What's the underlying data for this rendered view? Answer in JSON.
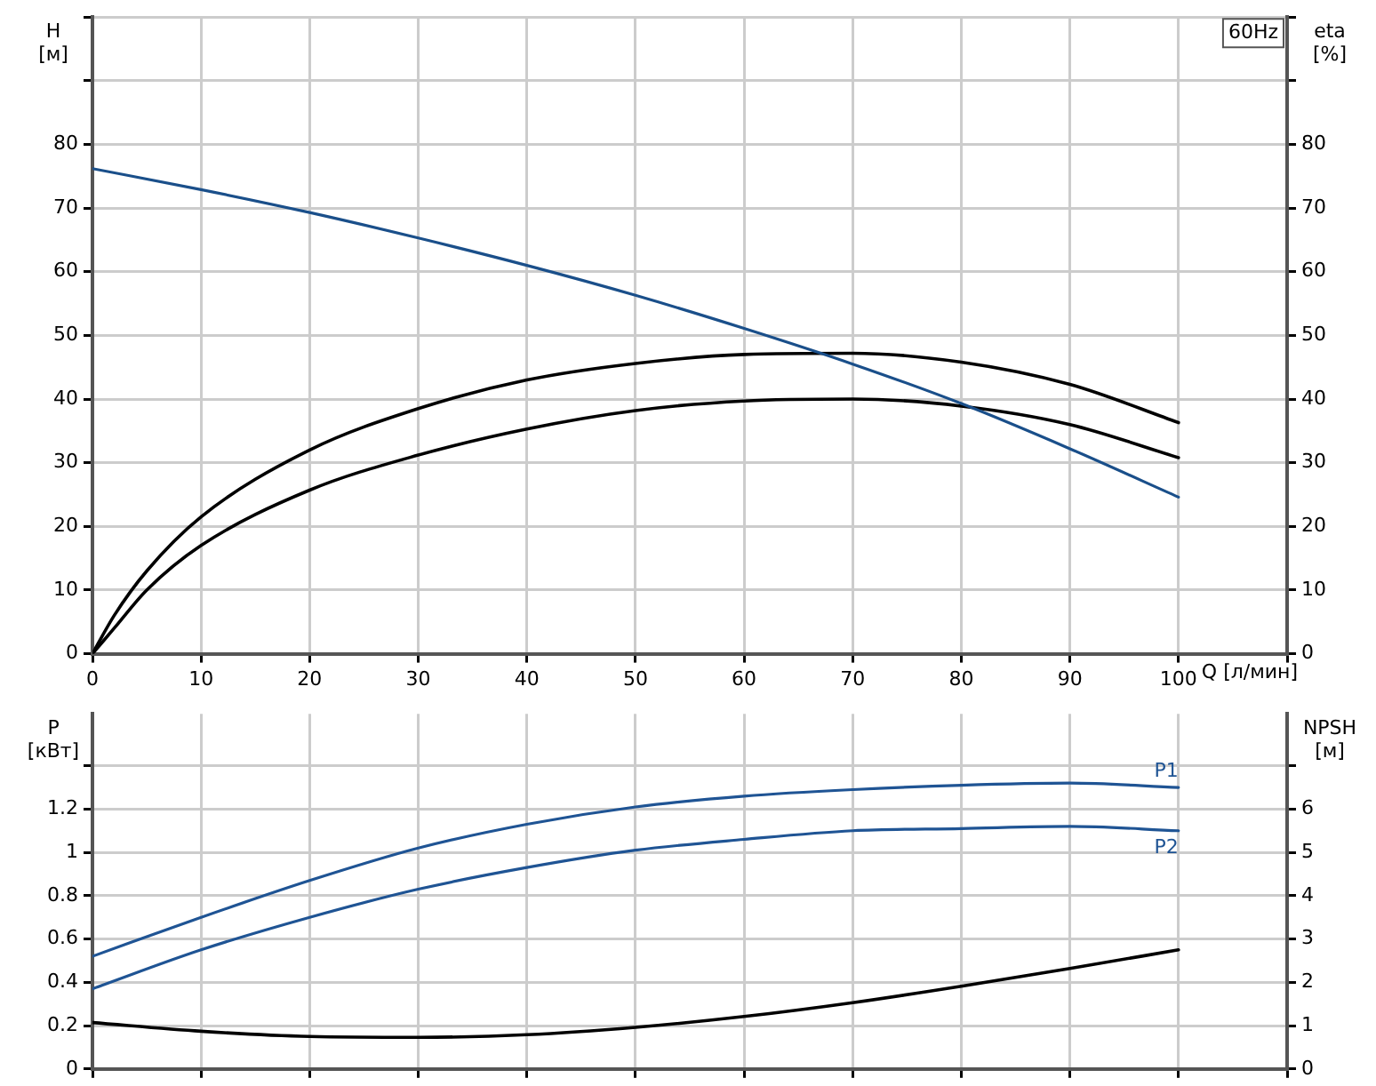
{
  "chart_data": [
    {
      "type": "line",
      "xlabel": "Q [л/мин]",
      "ylabel": "H [м]",
      "y2label": "eta [%]",
      "annotations": [
        "60Hz"
      ],
      "x": [
        0,
        10,
        20,
        30,
        40,
        50,
        60,
        70,
        80,
        90,
        100
      ],
      "xlim": [
        0,
        110
      ],
      "xticks": [
        0,
        10,
        20,
        30,
        40,
        50,
        60,
        70,
        80,
        90,
        100,
        {
          "value": 110,
          "label": null
        }
      ],
      "ylim": [
        0,
        100
      ],
      "yticks": [
        0,
        10,
        20,
        30,
        40,
        50,
        60,
        70,
        80,
        {
          "value": 90,
          "label": null
        },
        {
          "value": 100,
          "label": null
        }
      ],
      "y2lim": [
        0,
        100
      ],
      "y2ticks": [
        0,
        10,
        20,
        30,
        40,
        50,
        60,
        70,
        80,
        {
          "value": 90,
          "label": null
        },
        {
          "value": 100,
          "label": null
        }
      ],
      "grid": true,
      "legend": false,
      "marker": "none",
      "line_style": "solid",
      "series": [
        {
          "color": "#1a4f8a",
          "values": [
            76.2,
            72.9,
            69.3,
            65.3,
            61,
            56.3,
            51.1,
            45.5,
            39.3,
            32.2,
            24.6
          ]
        },
        {
          "color": "#000000",
          "axis": "y2",
          "x": [
            0,
            2,
            5,
            10,
            20,
            30,
            40,
            50,
            60,
            70,
            80,
            90,
            100
          ],
          "values": [
            0,
            6,
            13,
            21.5,
            32,
            38.5,
            43,
            45.6,
            47,
            47.2,
            45.8,
            42.3,
            36.3
          ]
        },
        {
          "color": "#000000",
          "axis": "y2",
          "x": [
            0,
            2,
            5,
            10,
            20,
            30,
            40,
            50,
            60,
            70,
            80,
            90,
            100
          ],
          "values": [
            0,
            4,
            10,
            17,
            25.7,
            31.2,
            35.3,
            38.2,
            39.7,
            40,
            38.9,
            36,
            30.8
          ]
        }
      ]
    },
    {
      "type": "line",
      "ylabel": "P [кВт]",
      "y2label": "NPSH [м]",
      "x": [
        0,
        10,
        20,
        30,
        40,
        50,
        60,
        70,
        80,
        90,
        100
      ],
      "xlim": [
        0,
        110
      ],
      "xticks": [
        0,
        10,
        20,
        30,
        40,
        50,
        60,
        70,
        80,
        90,
        100,
        {
          "value": 110,
          "label": null
        }
      ],
      "ylim": [
        0,
        1.64
      ],
      "yticks": [
        0.0,
        0.2,
        0.4,
        0.6,
        0.8,
        1.0,
        1.2,
        {
          "value": 1.4,
          "label": null
        }
      ],
      "y2lim": [
        0,
        8.2
      ],
      "y2ticks": [
        0,
        1,
        2,
        3,
        4,
        5,
        6,
        {
          "value": 7,
          "label": null
        }
      ],
      "tick_labels": "y",
      "grid": true,
      "legend": false,
      "marker": "none",
      "line_style": "solid",
      "series": [
        {
          "name": "P1",
          "color": "#1f5494",
          "values": [
            0.52,
            0.7,
            0.87,
            1.02,
            1.13,
            1.21,
            1.26,
            1.29,
            1.31,
            1.32,
            1.3
          ]
        },
        {
          "name": "P2",
          "color": "#1f5494",
          "values": [
            0.37,
            0.55,
            0.7,
            0.83,
            0.93,
            1.01,
            1.06,
            1.1,
            1.11,
            1.12,
            1.1
          ]
        },
        {
          "color": "#000000",
          "axis": "y2",
          "values": [
            1.07,
            0.87,
            0.75,
            0.73,
            0.79,
            0.96,
            1.21,
            1.53,
            1.91,
            2.32,
            2.75
          ]
        }
      ]
    }
  ]
}
